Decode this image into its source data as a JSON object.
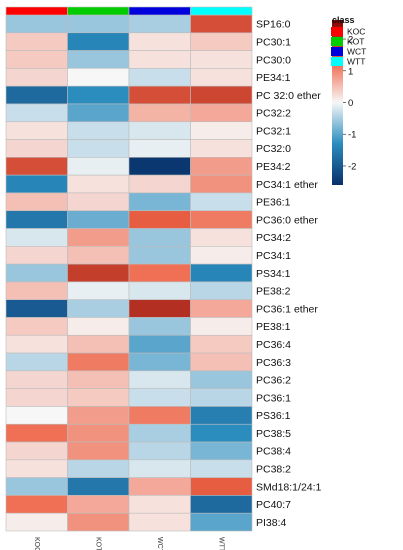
{
  "chart_data": {
    "type": "heatmap",
    "title": "",
    "xlabel": "",
    "ylabel": "",
    "columns": [
      "KOC",
      "KOT",
      "WCT",
      "WTT"
    ],
    "rows": [
      "SP16:0",
      "PC30:1",
      "PC30:0",
      "PE34:1",
      "PC 32:0 ether",
      "PC32:2",
      "PC32:1",
      "PC32:0",
      "PE34:2",
      "PC34:1 ether",
      "PE36:1",
      "PC36:0 ether",
      "PC34:2",
      "PC34:1",
      "PS34:1",
      "PE38:2",
      "PC36:1 ether",
      "PE38:1",
      "PC36:4",
      "PC36:3",
      "PC36:2",
      "PC36:1",
      "PS36:1",
      "PC38:5",
      "PC38:4",
      "PC38:2",
      "SMd18:1/24:1",
      "PC40:7",
      "PI38:4"
    ],
    "values": [
      [
        -0.6,
        -0.6,
        -0.5,
        1.6
      ],
      [
        0.4,
        -1.4,
        0.2,
        0.4
      ],
      [
        0.4,
        -0.6,
        0.2,
        0.2
      ],
      [
        0.3,
        0.0,
        -0.3,
        0.2
      ],
      [
        -1.8,
        -1.3,
        1.6,
        1.7
      ],
      [
        -0.3,
        -1.0,
        0.6,
        0.7
      ],
      [
        0.2,
        -0.3,
        -0.2,
        0.1
      ],
      [
        0.3,
        -0.3,
        -0.1,
        0.2
      ],
      [
        1.6,
        -0.1,
        -2.5,
        0.8
      ],
      [
        -1.4,
        0.2,
        0.3,
        0.9
      ],
      [
        0.5,
        0.3,
        -0.8,
        -0.3
      ],
      [
        -1.6,
        -0.9,
        1.4,
        1.1
      ],
      [
        -0.2,
        0.8,
        -0.6,
        0.2
      ],
      [
        0.3,
        0.5,
        -0.6,
        0.1
      ],
      [
        -0.6,
        1.8,
        1.2,
        -1.4
      ],
      [
        0.5,
        -0.1,
        -0.2,
        -0.4
      ],
      [
        -2.0,
        -0.5,
        2.0,
        0.7
      ],
      [
        0.4,
        0.1,
        -0.6,
        0.1
      ],
      [
        0.2,
        0.5,
        -1.0,
        0.4
      ],
      [
        -0.4,
        1.1,
        -0.8,
        0.5
      ],
      [
        0.3,
        0.5,
        -0.2,
        -0.6
      ],
      [
        0.3,
        0.4,
        -0.3,
        -0.4
      ],
      [
        0.0,
        0.8,
        1.1,
        -1.5
      ],
      [
        1.2,
        0.9,
        -0.5,
        -1.3
      ],
      [
        0.3,
        0.9,
        -0.4,
        -0.8
      ],
      [
        0.2,
        -0.4,
        -0.2,
        -0.3
      ],
      [
        -0.6,
        -1.6,
        0.7,
        1.4
      ],
      [
        1.2,
        0.7,
        0.2,
        -1.8
      ],
      [
        0.1,
        0.9,
        0.2,
        -1.0
      ]
    ],
    "annotation_row": {
      "title": "class",
      "levels": [
        {
          "name": "KOC",
          "color": "#ff0000"
        },
        {
          "name": "KOT",
          "color": "#00cc00"
        },
        {
          "name": "WCT",
          "color": "#0000dd"
        },
        {
          "name": "WTT",
          "color": "#00ffff"
        }
      ]
    },
    "color_scale": {
      "range": [
        -2.6,
        2.6
      ],
      "ticks": [
        2,
        1,
        0,
        -1,
        -2
      ],
      "colors": [
        "#08306b",
        "#2b8cbe",
        "#f7f7f7",
        "#ef6548",
        "#7f0000"
      ]
    },
    "legend_position": "top-right"
  }
}
